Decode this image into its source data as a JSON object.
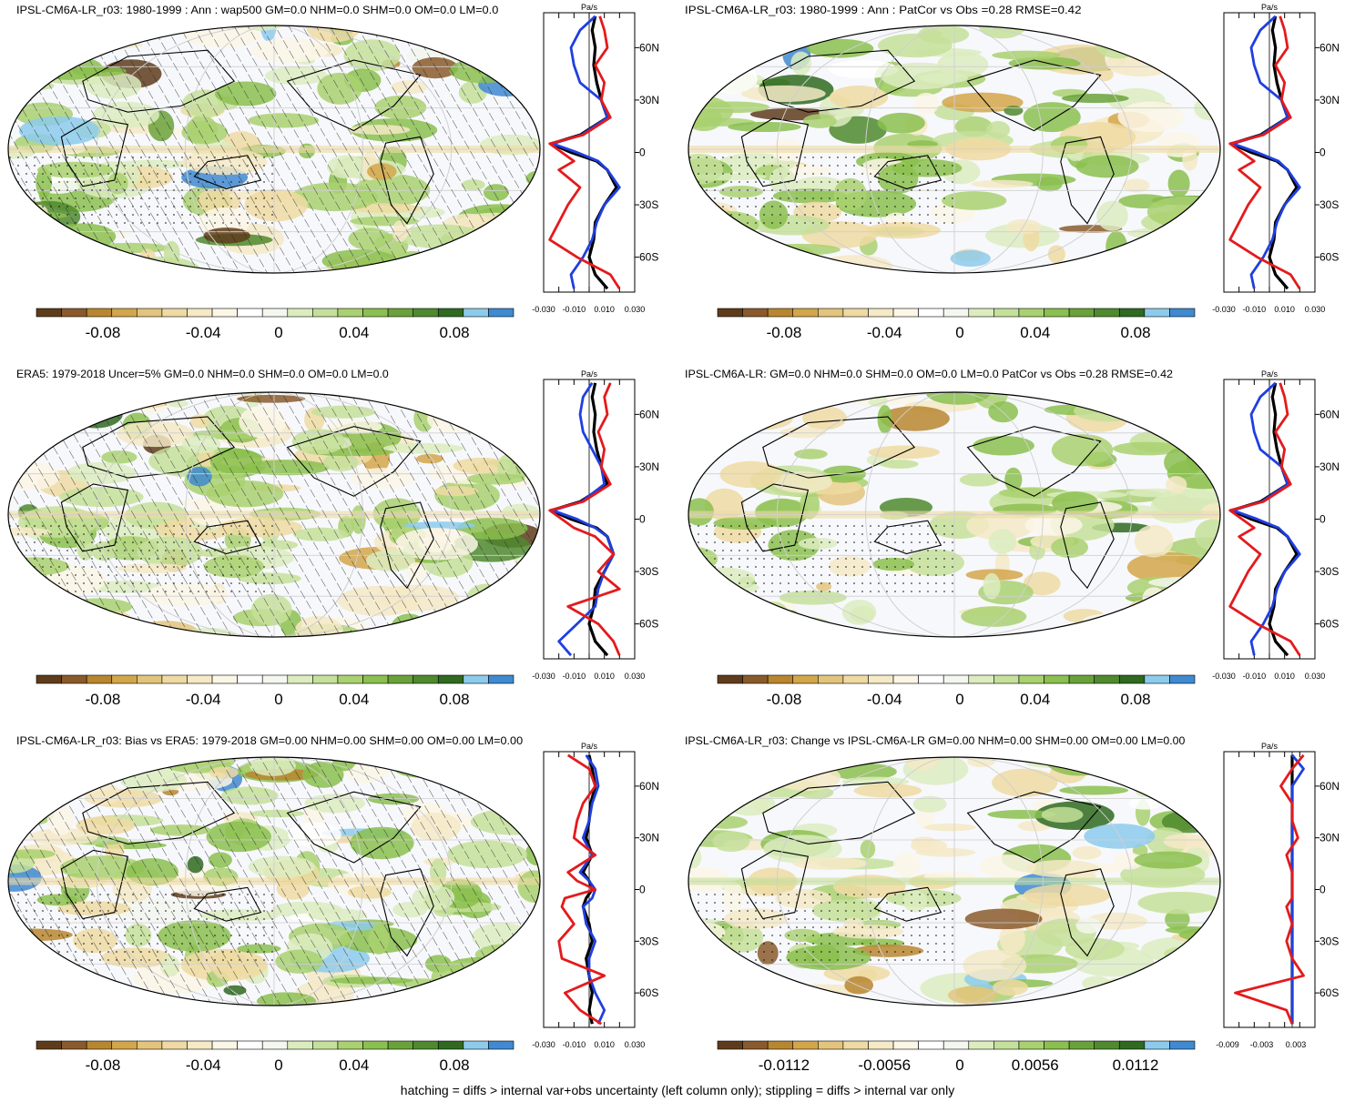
{
  "colors": {
    "palette": [
      "#5e3c1b",
      "#8a5a2c",
      "#b8862f",
      "#d3a64a",
      "#e3c47c",
      "#eedaa2",
      "#f5e9c6",
      "#fbf6e6",
      "#ffffff",
      "#f3f7ee",
      "#dcecbf",
      "#c5e09a",
      "#a9d170",
      "#8bbf4f",
      "#6aa23a",
      "#4f8a2e",
      "#2f6a20",
      "#8ccbec",
      "#3f8ad0"
    ],
    "ocean": "#f7f8fb",
    "obs_line": "#e41a1c",
    "model_line": "#1f3fe0",
    "mean_line": "#000000"
  },
  "panels": [
    {
      "title": "IPSL-CM6A-LR_r03: 1980-1999 : Ann : wap500 GM=0.0 NHM=0.0 SHM=0.0 OM=0.0 LM=0.0",
      "units": "Pa/s",
      "cbar_labels": [
        "-0.08",
        "-0.04",
        "0",
        "0.04",
        "0.08"
      ],
      "profile_xticks": [
        "-0.030",
        "-0.010",
        "0.010",
        "0.030"
      ],
      "lat_labels": [
        "60N",
        "30N",
        "0",
        "30S",
        "60S"
      ],
      "hatched": true
    },
    {
      "title": "IPSL-CM6A-LR_r03: 1980-1999 : Ann : PatCor vs Obs =0.28 RMSE=0.42",
      "units": "Pa/s",
      "cbar_labels": [
        "-0.08",
        "-0.04",
        "0",
        "0.04",
        "0.08"
      ],
      "profile_xticks": [
        "-0.030",
        "-0.010",
        "0.010",
        "0.030"
      ],
      "lat_labels": [
        "60N",
        "30N",
        "0",
        "30S",
        "60S"
      ],
      "hatched": false
    },
    {
      "title": "ERA5: 1979-2018 Uncer=5% GM=0.0 NHM=0.0 SHM=0.0 OM=0.0 LM=0.0",
      "units": "Pa/s",
      "cbar_labels": [
        "-0.08",
        "-0.04",
        "0",
        "0.04",
        "0.08"
      ],
      "profile_xticks": [
        "-0.030",
        "-0.010",
        "0.010",
        "0.030"
      ],
      "lat_labels": [
        "60N",
        "30N",
        "0",
        "30S",
        "60S"
      ],
      "hatched": true
    },
    {
      "title": "IPSL-CM6A-LR: GM=0.0 NHM=0.0 SHM=0.0 OM=0.0 LM=0.0 PatCor vs Obs =0.28 RMSE=0.42",
      "units": "Pa/s",
      "cbar_labels": [
        "-0.08",
        "-0.04",
        "0",
        "0.04",
        "0.08"
      ],
      "profile_xticks": [
        "-0.030",
        "-0.010",
        "0.010",
        "0.030"
      ],
      "lat_labels": [
        "60N",
        "30N",
        "0",
        "30S",
        "60S"
      ],
      "hatched": false
    },
    {
      "title": "IPSL-CM6A-LR_r03: Bias vs ERA5: 1979-2018 GM=0.00 NHM=0.00 SHM=0.00 OM=0.00 LM=0.00",
      "units": "Pa/s",
      "cbar_labels": [
        "-0.08",
        "-0.04",
        "0",
        "0.04",
        "0.08"
      ],
      "profile_xticks": [
        "-0.030",
        "-0.010",
        "0.010",
        "0.030"
      ],
      "lat_labels": [
        "60N",
        "30N",
        "0",
        "30S",
        "60S"
      ],
      "hatched": true
    },
    {
      "title": "IPSL-CM6A-LR_r03: Change vs IPSL-CM6A-LR GM=0.00 NHM=0.00 SHM=0.00 OM=0.00 LM=0.00",
      "units": "Pa/s",
      "cbar_labels": [
        "-0.0112",
        "-0.0056",
        "0",
        "0.0056",
        "0.0112"
      ],
      "profile_xticks": [
        "-0.009",
        "-0.003",
        "0.003"
      ],
      "lat_labels": [
        "60N",
        "30N",
        "0",
        "30S",
        "60S"
      ],
      "hatched": false
    }
  ],
  "footer": "hatching = diffs > internal var+obs uncertainty (left column only); stippling = diffs > internal var only",
  "chart_data": [
    {
      "type": "heatmap",
      "title": "IPSL-CM6A-LR_r03: 1980-1999 : Ann : wap500 GM=0.0 NHM=0.0 SHM=0.0 OM=0.0 LM=0.0",
      "colorbar_ticks": [
        -0.08,
        -0.04,
        0,
        0.04,
        0.08
      ],
      "profile": {
        "type": "line",
        "units": "Pa/s",
        "xlim": [
          -0.03,
          0.03
        ],
        "ylim": [
          -80,
          80
        ],
        "lat": [
          78,
          70,
          60,
          50,
          40,
          30,
          20,
          10,
          5,
          0,
          -5,
          -10,
          -20,
          -30,
          -40,
          -50,
          -60,
          -70,
          -78
        ],
        "series": [
          {
            "color": "#000000",
            "values": [
              0.004,
              0.002,
              0.004,
              0.003,
              0.005,
              0.008,
              0.012,
              -0.006,
              -0.025,
              -0.012,
              0.005,
              0.012,
              0.018,
              0.01,
              0.004,
              0.003,
              0.0,
              0.004,
              0.012
            ]
          },
          {
            "color": "#1f3fe0",
            "values": [
              0.004,
              -0.006,
              -0.012,
              -0.01,
              -0.006,
              0.008,
              0.012,
              -0.005,
              -0.024,
              -0.008,
              0.006,
              0.012,
              0.02,
              0.01,
              0.005,
              0.002,
              -0.004,
              -0.012,
              -0.01
            ]
          },
          {
            "color": "#e41a1c",
            "values": [
              0.007,
              0.01,
              0.012,
              0.004,
              0.01,
              0.008,
              0.014,
              -0.004,
              -0.026,
              -0.018,
              -0.01,
              -0.02,
              -0.006,
              -0.014,
              -0.02,
              -0.026,
              -0.008,
              0.014,
              0.02
            ]
          }
        ]
      }
    },
    {
      "type": "heatmap",
      "title": "IPSL-CM6A-LR_r03: 1980-1999 : Ann : PatCor vs Obs =0.28 RMSE=0.42",
      "colorbar_ticks": [
        -0.08,
        -0.04,
        0,
        0.04,
        0.08
      ],
      "profile": {
        "type": "line",
        "units": "Pa/s",
        "xlim": [
          -0.03,
          0.03
        ],
        "ylim": [
          -80,
          80
        ],
        "lat": [
          78,
          70,
          60,
          50,
          40,
          30,
          20,
          10,
          5,
          0,
          -5,
          -10,
          -20,
          -30,
          -40,
          -50,
          -60,
          -70,
          -78
        ],
        "series": [
          {
            "color": "#000000",
            "values": [
              0.004,
              0.002,
              0.004,
              0.003,
              0.005,
              0.008,
              0.012,
              -0.006,
              -0.025,
              -0.012,
              0.005,
              0.012,
              0.018,
              0.01,
              0.004,
              0.003,
              0.0,
              0.004,
              0.012
            ]
          },
          {
            "color": "#1f3fe0",
            "values": [
              0.004,
              -0.006,
              -0.012,
              -0.01,
              -0.006,
              0.008,
              0.012,
              -0.005,
              -0.024,
              -0.008,
              0.006,
              0.012,
              0.02,
              0.01,
              0.005,
              0.002,
              -0.004,
              -0.012,
              -0.01
            ]
          },
          {
            "color": "#e41a1c",
            "values": [
              0.007,
              0.01,
              0.012,
              0.004,
              0.01,
              0.008,
              0.014,
              -0.004,
              -0.026,
              -0.018,
              -0.01,
              -0.02,
              -0.006,
              -0.014,
              -0.02,
              -0.026,
              -0.008,
              0.014,
              0.02
            ]
          }
        ]
      }
    },
    {
      "type": "heatmap",
      "title": "ERA5: 1979-2018 Uncer=5% GM=0.0 NHM=0.0 SHM=0.0 OM=0.0 LM=0.0",
      "colorbar_ticks": [
        -0.08,
        -0.04,
        0,
        0.04,
        0.08
      ],
      "profile": {
        "type": "line",
        "units": "Pa/s",
        "xlim": [
          -0.03,
          0.03
        ],
        "ylim": [
          -80,
          80
        ],
        "lat": [
          78,
          70,
          60,
          50,
          40,
          30,
          20,
          10,
          5,
          0,
          -5,
          -10,
          -20,
          -30,
          -40,
          -50,
          -60,
          -70,
          -78
        ],
        "series": [
          {
            "color": "#000000",
            "values": [
              0.004,
              0.002,
              0.004,
              0.003,
              0.005,
              0.008,
              0.012,
              -0.006,
              -0.025,
              -0.012,
              0.005,
              0.012,
              0.016,
              0.01,
              0.004,
              0.003,
              0.0,
              0.004,
              0.012
            ]
          },
          {
            "color": "#1f3fe0",
            "values": [
              0.002,
              -0.004,
              -0.006,
              -0.004,
              0.002,
              0.008,
              0.01,
              -0.005,
              -0.024,
              -0.008,
              0.004,
              0.012,
              0.016,
              0.01,
              0.006,
              0.004,
              -0.008,
              -0.02,
              -0.012
            ]
          },
          {
            "color": "#e41a1c",
            "values": [
              0.014,
              0.01,
              0.012,
              0.006,
              0.01,
              0.008,
              0.014,
              -0.004,
              -0.026,
              -0.018,
              -0.01,
              0.004,
              0.016,
              0.006,
              0.02,
              -0.014,
              0.006,
              0.016,
              0.02
            ]
          }
        ]
      }
    },
    {
      "type": "heatmap",
      "title": "IPSL-CM6A-LR: GM=0.0 NHM=0.0 SHM=0.0 OM=0.0 LM=0.0 PatCor vs Obs =0.28 RMSE=0.42",
      "colorbar_ticks": [
        -0.08,
        -0.04,
        0,
        0.04,
        0.08
      ],
      "profile": {
        "type": "line",
        "units": "Pa/s",
        "xlim": [
          -0.03,
          0.03
        ],
        "ylim": [
          -80,
          80
        ],
        "lat": [
          78,
          70,
          60,
          50,
          40,
          30,
          20,
          10,
          5,
          0,
          -5,
          -10,
          -20,
          -30,
          -40,
          -50,
          -60,
          -70,
          -78
        ],
        "series": [
          {
            "color": "#000000",
            "values": [
              0.004,
              0.002,
              0.004,
              0.003,
              0.005,
              0.008,
              0.012,
              -0.006,
              -0.025,
              -0.012,
              0.005,
              0.012,
              0.018,
              0.01,
              0.004,
              0.003,
              0.0,
              0.004,
              0.012
            ]
          },
          {
            "color": "#1f3fe0",
            "values": [
              0.004,
              -0.006,
              -0.012,
              -0.01,
              -0.006,
              0.008,
              0.012,
              -0.005,
              -0.024,
              -0.008,
              0.006,
              0.012,
              0.02,
              0.01,
              0.005,
              0.002,
              -0.004,
              -0.012,
              -0.01
            ]
          },
          {
            "color": "#e41a1c",
            "values": [
              0.007,
              0.01,
              0.012,
              0.004,
              0.01,
              0.008,
              0.014,
              -0.004,
              -0.026,
              -0.018,
              -0.01,
              -0.02,
              -0.006,
              -0.014,
              -0.02,
              -0.026,
              -0.008,
              0.014,
              0.02
            ]
          }
        ]
      }
    },
    {
      "type": "heatmap",
      "title": "IPSL-CM6A-LR_r03: Bias vs ERA5: 1979-2018 GM=0.00 NHM=0.00 SHM=0.00 OM=0.00 LM=0.00",
      "colorbar_ticks": [
        -0.08,
        -0.04,
        0,
        0.04,
        0.08
      ],
      "profile": {
        "type": "line",
        "units": "Pa/s",
        "xlim": [
          -0.03,
          0.03
        ],
        "ylim": [
          -80,
          80
        ],
        "lat": [
          78,
          70,
          60,
          50,
          40,
          30,
          20,
          10,
          5,
          0,
          -5,
          -10,
          -20,
          -30,
          -40,
          -50,
          -60,
          -70,
          -78
        ],
        "series": [
          {
            "color": "#000000",
            "values": [
              0.0,
              0.002,
              0.004,
              0.001,
              0.0,
              -0.002,
              0.002,
              -0.004,
              0.0,
              0.002,
              -0.002,
              -0.004,
              0.0,
              0.002,
              -0.002,
              0.0,
              0.002,
              0.0,
              0.002
            ]
          },
          {
            "color": "#1f3fe0",
            "values": [
              -0.002,
              0.004,
              0.006,
              0.002,
              0.0,
              -0.004,
              0.002,
              -0.006,
              0.0,
              0.004,
              0.002,
              -0.004,
              -0.002,
              0.004,
              0.0,
              0.0,
              0.004,
              0.01,
              0.006
            ]
          },
          {
            "color": "#e41a1c",
            "values": [
              -0.014,
              0.0,
              0.004,
              -0.004,
              -0.008,
              -0.01,
              0.004,
              -0.014,
              -0.008,
              0.004,
              -0.016,
              -0.018,
              -0.01,
              -0.02,
              -0.018,
              0.01,
              -0.016,
              -0.006,
              0.008
            ]
          }
        ]
      }
    },
    {
      "type": "heatmap",
      "title": "IPSL-CM6A-LR_r03: Change vs IPSL-CM6A-LR GM=0.00 NHM=0.00 SHM=0.00 OM=0.00 LM=0.00",
      "colorbar_ticks": [
        -0.0112,
        -0.0056,
        0,
        0.0056,
        0.0112
      ],
      "profile": {
        "type": "line",
        "units": "Pa/s",
        "xlim": [
          -0.012,
          0.004
        ],
        "ylim": [
          -80,
          80
        ],
        "lat": [
          78,
          70,
          60,
          50,
          40,
          30,
          20,
          10,
          5,
          0,
          -5,
          -10,
          -20,
          -30,
          -40,
          -50,
          -60,
          -70,
          -78
        ],
        "series": [
          {
            "color": "#000000",
            "values": [
              0.0,
              0.0,
              0.0,
              0.0,
              0.0,
              0.0,
              0.0,
              0.0,
              0.0,
              0.0,
              0.0,
              0.0,
              0.0,
              0.0,
              0.0,
              0.0,
              0.0,
              0.0,
              0.0
            ]
          },
          {
            "color": "#1f3fe0",
            "values": [
              0.0,
              0.002,
              0.0,
              0.0,
              0.0,
              0.0,
              0.0,
              0.0,
              0.0,
              0.0,
              0.0,
              0.0,
              0.0,
              0.0,
              0.0,
              0.0,
              0.0,
              0.0,
              0.0
            ]
          },
          {
            "color": "#e41a1c",
            "values": [
              0.002,
              0.0,
              -0.002,
              0.0,
              0.0,
              0.001,
              -0.001,
              0.0,
              0.0,
              0.0,
              0.0,
              -0.001,
              0.0,
              -0.001,
              0.0,
              0.002,
              -0.01,
              -0.001,
              0.0
            ]
          }
        ]
      }
    }
  ]
}
